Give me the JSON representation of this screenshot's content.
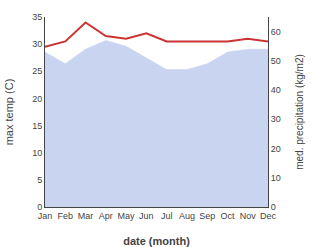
{
  "chart_data": {
    "type": "line",
    "categories": [
      "Jan",
      "Feb",
      "Mar",
      "Apr",
      "May",
      "Jun",
      "Jul",
      "Aug",
      "Sep",
      "Oct",
      "Nov",
      "Dec"
    ],
    "xlabel": "date (month)",
    "ylabel": "max temp (C)",
    "y2label": "med. precipitation (kg/m2)",
    "series": [
      {
        "type": "area",
        "axis": "y2",
        "color": "#c8d4f0",
        "values": [
          53,
          49,
          54,
          57,
          55,
          51,
          47,
          47,
          49,
          53,
          54,
          54
        ]
      },
      {
        "type": "line",
        "color": "#cc3333",
        "values": [
          29.5,
          30.5,
          34.0,
          31.5,
          31.0,
          32.0,
          30.5,
          30.5,
          30.5,
          30.5,
          31.0,
          30.5
        ]
      }
    ],
    "ylim": [
      0,
      35
    ],
    "yticks": [
      0,
      5,
      10,
      15,
      20,
      25,
      30,
      35
    ],
    "y2lim": [
      0,
      65
    ],
    "y2ticks": [
      0,
      10,
      20,
      30,
      40,
      50,
      60
    ],
    "grid": false
  }
}
